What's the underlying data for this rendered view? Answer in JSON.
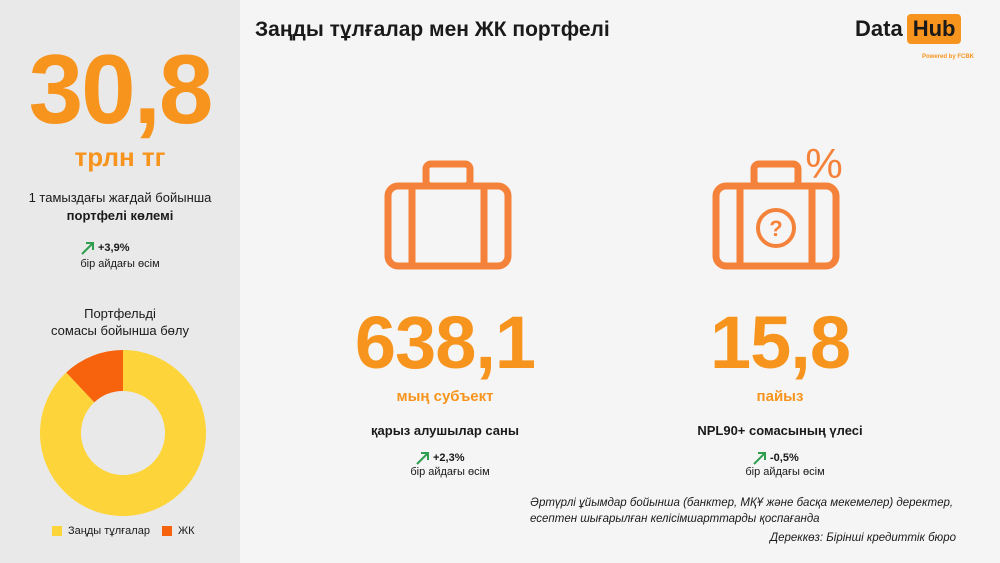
{
  "title": "Заңды тұлғалар мен ЖК портфелі",
  "logo": {
    "data": "Data",
    "hub": "Hub",
    "powered": "Powered by FCBK"
  },
  "portfolio": {
    "value": "30,8",
    "unit": "трлн тг",
    "desc_line1": "1 тамыздағы жағдай бойынша",
    "desc_line2": "портфелі көлемі",
    "growth": "+3,9%",
    "growth_caption": "бір айдағы өсім"
  },
  "distribution": {
    "title_line1": "Портфельді",
    "title_line2": "сомасы бойынша бөлу",
    "legend": [
      {
        "label": "Заңды тұлғалар",
        "color": "#fdd53a"
      },
      {
        "label": "ЖК",
        "color": "#f7630c"
      }
    ]
  },
  "chart_data": {
    "type": "pie",
    "categories": [
      "Заңды тұлғалар",
      "ЖК"
    ],
    "values": [
      88,
      12
    ]
  },
  "borrowers": {
    "value": "638,1",
    "unit": "мың субъект",
    "label": "қарыз алушылар саны",
    "growth": "+2,3%",
    "growth_caption": "бір айдағы өсім"
  },
  "npl": {
    "value": "15,8",
    "unit": "пайыз",
    "label": "NPL90+ сомасының үлесі",
    "growth": "-0,5%",
    "growth_caption": "бір айдағы өсім"
  },
  "note_line1": "Әртүрлі ұйымдар бойынша (банктер, МҚҰ және басқа мекемелер) деректер,",
  "note_line2": "есептен шығарылған келісімшарттарды қоспағанда",
  "source": "Дереккөз: Бірінші кредиттік бюро",
  "colors": {
    "accent": "#f7941d",
    "icon": "#f5823a",
    "growth_arrow": "#2e9e4f"
  }
}
